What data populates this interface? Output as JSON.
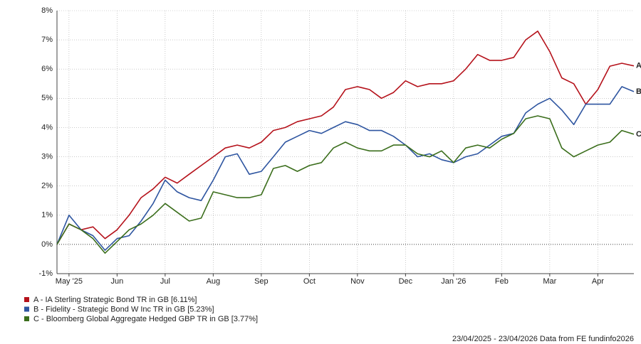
{
  "chart_data": {
    "type": "line",
    "categories": [
      null,
      "May '25",
      null,
      null,
      null,
      "Jun",
      null,
      null,
      null,
      "Jul",
      null,
      null,
      null,
      "Aug",
      null,
      null,
      null,
      "Sep",
      null,
      null,
      null,
      "Oct",
      null,
      null,
      null,
      "Nov",
      null,
      null,
      null,
      "Dec",
      null,
      null,
      null,
      "Jan '26",
      null,
      null,
      null,
      "Feb",
      null,
      null,
      null,
      "Mar",
      null,
      null,
      null,
      "Apr",
      null,
      null,
      null
    ],
    "series": [
      {
        "name": "A - IA Sterling Strategic Bond TR in GB [6.11%]",
        "label": "A",
        "color": "#b5121b",
        "values": [
          0,
          0.7,
          0.5,
          0.6,
          0.2,
          0.5,
          1.0,
          1.6,
          1.9,
          2.3,
          2.1,
          2.4,
          2.7,
          3.0,
          3.3,
          3.4,
          3.3,
          3.5,
          3.9,
          4.0,
          4.2,
          4.3,
          4.4,
          4.7,
          5.3,
          5.4,
          5.3,
          5.0,
          5.2,
          5.6,
          5.4,
          5.5,
          5.5,
          5.6,
          6.0,
          6.5,
          6.3,
          6.3,
          6.4,
          7.0,
          7.3,
          6.6,
          5.7,
          5.5,
          4.8,
          5.3,
          6.1,
          6.2,
          6.11
        ]
      },
      {
        "name": "B - Fidelity - Strategic Bond W Inc TR in GB [5.23%]",
        "label": "B",
        "color": "#2e55a0",
        "values": [
          0,
          1.0,
          0.5,
          0.3,
          -0.2,
          0.2,
          0.3,
          0.8,
          1.4,
          2.2,
          1.8,
          1.6,
          1.5,
          2.2,
          3.0,
          3.1,
          2.4,
          2.5,
          3.0,
          3.5,
          3.7,
          3.9,
          3.8,
          4.0,
          4.2,
          4.1,
          3.9,
          3.9,
          3.7,
          3.4,
          3.0,
          3.1,
          2.9,
          2.8,
          3.0,
          3.1,
          3.4,
          3.7,
          3.8,
          4.5,
          4.8,
          5.0,
          4.6,
          4.1,
          4.8,
          4.8,
          4.8,
          5.4,
          5.23
        ]
      },
      {
        "name": "C - Bloomberg Global Aggregate Hedged GBP TR in GB [3.77%]",
        "label": "C",
        "color": "#3b6e1c",
        "values": [
          0,
          0.7,
          0.5,
          0.2,
          -0.3,
          0.1,
          0.5,
          0.7,
          1.0,
          1.4,
          1.1,
          0.8,
          0.9,
          1.8,
          1.7,
          1.6,
          1.6,
          1.7,
          2.6,
          2.7,
          2.5,
          2.7,
          2.8,
          3.3,
          3.5,
          3.3,
          3.2,
          3.2,
          3.4,
          3.4,
          3.1,
          3.0,
          3.2,
          2.8,
          3.3,
          3.4,
          3.3,
          3.6,
          3.8,
          4.3,
          4.4,
          4.3,
          3.3,
          3.0,
          3.2,
          3.4,
          3.5,
          3.9,
          3.77
        ]
      }
    ],
    "ylim": [
      -1,
      8
    ],
    "yticks": [
      {
        "value": -1,
        "label": "-1%"
      },
      {
        "value": 0,
        "label": "0%"
      },
      {
        "value": 1,
        "label": "1%"
      },
      {
        "value": 2,
        "label": "2%"
      },
      {
        "value": 3,
        "label": "3%"
      },
      {
        "value": 4,
        "label": "4%"
      },
      {
        "value": 5,
        "label": "5%"
      },
      {
        "value": 6,
        "label": "6%"
      },
      {
        "value": 7,
        "label": "7%"
      },
      {
        "value": 8,
        "label": "8%"
      }
    ],
    "grid": true,
    "legend": "bottom-left",
    "footer": "23/04/2025 - 23/04/2026 Data from FE fundinfo2026"
  }
}
